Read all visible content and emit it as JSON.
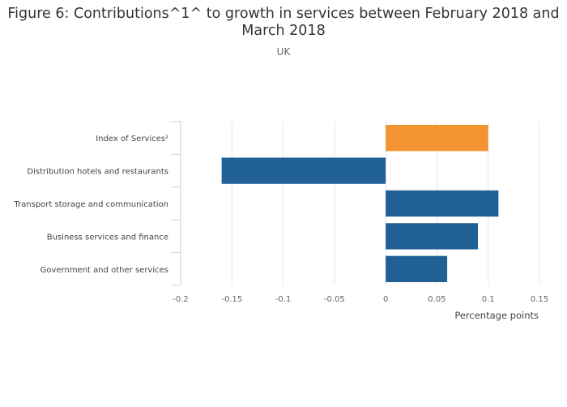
{
  "chart_data": {
    "type": "bar",
    "orientation": "horizontal",
    "title": "Figure 6: Contributions^1^ to growth in services between February 2018 and March 2018",
    "subtitle": "UK",
    "xlabel": "Percentage points",
    "ylabel": "",
    "xlim": [
      -0.2,
      0.15
    ],
    "xticks": [
      -0.2,
      -0.15,
      -0.1,
      -0.05,
      0,
      0.05,
      0.1,
      0.15
    ],
    "xtick_labels": [
      "-0.2",
      "-0.15",
      "-0.1",
      "-0.05",
      "0",
      "0.05",
      "0.1",
      "0.15"
    ],
    "grid": true,
    "categories": [
      "Index of Services²",
      "Distribution hotels and restaurants",
      "Transport storage and communication",
      "Business services and finance",
      "Government and other services"
    ],
    "values": [
      0.1,
      -0.16,
      0.11,
      0.09,
      0.06
    ],
    "colors": [
      "#f39431",
      "#206095",
      "#206095",
      "#206095",
      "#206095"
    ]
  }
}
